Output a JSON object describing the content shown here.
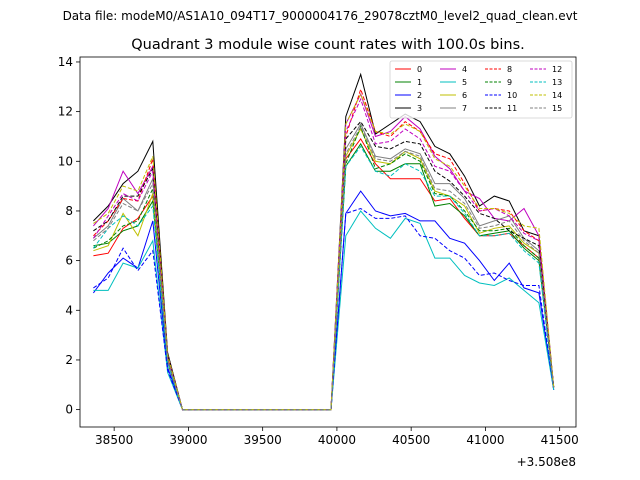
{
  "chart_data": {
    "type": "line",
    "suptitle": "Data file: modeM0/AS1A10_094T17_9000004176_29078cztM0_level2_quad_clean.evt",
    "title": "Quadrant 3 module wise count rates with 100.0s bins.",
    "xlabel": "",
    "ylabel": "",
    "x_offset_label": "+3.508e8",
    "xlim": [
      38270,
      41610
    ],
    "ylim": [
      -0.7,
      14.2
    ],
    "xticks": [
      38500,
      39000,
      39500,
      40000,
      40500,
      41000,
      41500
    ],
    "xtick_labels": [
      "38500",
      "39000",
      "39500",
      "40000",
      "40500",
      "41000",
      "41500"
    ],
    "yticks": [
      0,
      2,
      4,
      6,
      8,
      10,
      12,
      14
    ],
    "ytick_labels": [
      "0",
      "2",
      "4",
      "6",
      "8",
      "10",
      "12",
      "14"
    ],
    "grid": false,
    "legend_placement": "upper-right",
    "x": [
      38360,
      38460,
      38560,
      38660,
      38760,
      38860,
      38960,
      39060,
      39160,
      39260,
      39360,
      39460,
      39560,
      39660,
      39760,
      39860,
      39960,
      40060,
      40160,
      40260,
      40360,
      40460,
      40560,
      40660,
      40760,
      40860,
      40960,
      41060,
      41160,
      41260,
      41360,
      41460
    ],
    "series": [
      {
        "name": "0",
        "color": "#ff0000",
        "dash": "solid",
        "values": [
          6.2,
          6.3,
          7.3,
          7.7,
          8.6,
          2.1,
          0,
          0,
          0,
          0,
          0,
          0,
          0,
          0,
          0,
          0,
          0,
          10.1,
          10.9,
          9.9,
          9.3,
          9.3,
          9.3,
          8.4,
          8.5,
          7.7,
          7.0,
          7.0,
          7.1,
          6.6,
          6.1,
          0.9
        ]
      },
      {
        "name": "1",
        "color": "#008000",
        "dash": "solid",
        "values": [
          6.6,
          6.7,
          7.2,
          7.4,
          8.4,
          1.9,
          0,
          0,
          0,
          0,
          0,
          0,
          0,
          0,
          0,
          0,
          0,
          9.8,
          10.7,
          9.6,
          9.6,
          9.9,
          9.9,
          8.2,
          8.3,
          7.8,
          7.0,
          7.1,
          7.2,
          6.5,
          6.0,
          0.9
        ]
      },
      {
        "name": "2",
        "color": "#0000ff",
        "dash": "solid",
        "values": [
          4.7,
          5.5,
          6.1,
          5.7,
          7.6,
          1.7,
          0,
          0,
          0,
          0,
          0,
          0,
          0,
          0,
          0,
          0,
          0,
          7.9,
          8.8,
          8.0,
          7.8,
          7.9,
          7.6,
          7.6,
          6.9,
          6.7,
          6.0,
          5.2,
          5.9,
          4.9,
          4.7,
          0.8
        ]
      },
      {
        "name": "3",
        "color": "#000000",
        "dash": "solid",
        "values": [
          7.6,
          8.2,
          9.1,
          9.6,
          10.8,
          2.3,
          0,
          0,
          0,
          0,
          0,
          0,
          0,
          0,
          0,
          0,
          0,
          11.8,
          13.5,
          11.1,
          11.5,
          11.9,
          11.6,
          10.6,
          10.3,
          9.4,
          8.2,
          8.6,
          8.4,
          7.2,
          7.0,
          0.9
        ]
      },
      {
        "name": "4",
        "color": "#bf00bf",
        "dash": "solid",
        "values": [
          7.4,
          8.1,
          9.6,
          8.7,
          9.8,
          2.2,
          0,
          0,
          0,
          0,
          0,
          0,
          0,
          0,
          0,
          0,
          0,
          11.5,
          12.7,
          11.0,
          11.2,
          11.8,
          11.3,
          10.2,
          9.7,
          8.8,
          8.5,
          7.7,
          7.6,
          8.1,
          7.0,
          0.9
        ]
      },
      {
        "name": "5",
        "color": "#00bfbf",
        "dash": "solid",
        "values": [
          4.8,
          4.8,
          5.9,
          5.7,
          6.8,
          1.5,
          0,
          0,
          0,
          0,
          0,
          0,
          0,
          0,
          0,
          0,
          0,
          7.0,
          8.0,
          7.3,
          6.9,
          7.7,
          7.5,
          6.1,
          6.1,
          5.4,
          5.1,
          5.0,
          5.3,
          4.8,
          4.3,
          0.8
        ]
      },
      {
        "name": "6",
        "color": "#bfbf00",
        "dash": "solid",
        "values": [
          6.4,
          6.6,
          7.9,
          7.0,
          8.7,
          2.0,
          0,
          0,
          0,
          0,
          0,
          0,
          0,
          0,
          0,
          0,
          0,
          10.2,
          11.3,
          10.0,
          9.9,
          10.4,
          10.1,
          8.8,
          8.6,
          8.2,
          7.1,
          7.3,
          7.4,
          6.7,
          6.3,
          0.9
        ]
      },
      {
        "name": "7",
        "color": "#808080",
        "dash": "solid",
        "values": [
          6.9,
          7.4,
          8.5,
          8.0,
          9.3,
          2.1,
          0,
          0,
          0,
          0,
          0,
          0,
          0,
          0,
          0,
          0,
          0,
          10.5,
          11.5,
          10.2,
          10.1,
          10.5,
          10.3,
          9.1,
          9.1,
          8.5,
          7.4,
          7.6,
          7.8,
          6.9,
          6.4,
          0.9
        ]
      },
      {
        "name": "8",
        "color": "#ff0000",
        "dash": "dashed",
        "values": [
          7.0,
          7.6,
          8.5,
          8.4,
          10.1,
          2.2,
          0,
          0,
          0,
          0,
          0,
          0,
          0,
          0,
          0,
          0,
          0,
          11.0,
          12.9,
          11.2,
          11.0,
          11.6,
          11.2,
          10.3,
          10.1,
          9.1,
          8.0,
          8.1,
          8.0,
          7.2,
          6.8,
          0.9
        ]
      },
      {
        "name": "9",
        "color": "#008000",
        "dash": "dashed",
        "values": [
          6.5,
          6.8,
          7.4,
          7.6,
          8.9,
          2.0,
          0,
          0,
          0,
          0,
          0,
          0,
          0,
          0,
          0,
          0,
          0,
          9.9,
          11.4,
          9.7,
          9.9,
          10.3,
          10.0,
          8.7,
          8.6,
          8.0,
          7.2,
          7.2,
          7.3,
          6.6,
          6.1,
          0.9
        ]
      },
      {
        "name": "10",
        "color": "#0000ff",
        "dash": "dashed",
        "values": [
          4.9,
          5.3,
          6.5,
          5.6,
          6.4,
          1.6,
          0,
          0,
          0,
          0,
          0,
          0,
          0,
          0,
          0,
          0,
          0,
          7.9,
          8.1,
          7.7,
          7.7,
          7.8,
          7.0,
          6.9,
          6.4,
          6.1,
          5.4,
          5.5,
          5.2,
          5.0,
          5.0,
          0.8
        ]
      },
      {
        "name": "11",
        "color": "#000000",
        "dash": "dashed",
        "values": [
          7.2,
          7.6,
          8.6,
          8.6,
          9.7,
          2.2,
          0,
          0,
          0,
          0,
          0,
          0,
          0,
          0,
          0,
          0,
          0,
          10.9,
          11.6,
          10.6,
          10.5,
          10.8,
          10.7,
          9.6,
          9.2,
          8.6,
          7.9,
          7.7,
          7.2,
          6.9,
          6.6,
          0.9
        ]
      },
      {
        "name": "12",
        "color": "#bf00bf",
        "dash": "dashed",
        "values": [
          6.9,
          7.8,
          8.7,
          8.4,
          9.6,
          2.1,
          0,
          0,
          0,
          0,
          0,
          0,
          0,
          0,
          0,
          0,
          0,
          11.2,
          12.5,
          10.7,
          10.8,
          11.3,
          10.9,
          9.8,
          9.6,
          8.8,
          8.0,
          8.1,
          7.8,
          7.1,
          6.8,
          0.9
        ]
      },
      {
        "name": "13",
        "color": "#00bfbf",
        "dash": "dashed",
        "values": [
          6.5,
          7.3,
          7.8,
          7.4,
          8.2,
          1.9,
          0,
          0,
          0,
          0,
          0,
          0,
          0,
          0,
          0,
          0,
          0,
          9.8,
          10.6,
          9.6,
          9.4,
          9.9,
          9.6,
          8.6,
          8.6,
          7.9,
          7.0,
          7.0,
          7.1,
          6.4,
          5.9,
          0.8
        ]
      },
      {
        "name": "14",
        "color": "#bfbf00",
        "dash": "dashed",
        "values": [
          7.5,
          7.9,
          9.0,
          8.8,
          10.2,
          2.2,
          0,
          0,
          0,
          0,
          0,
          0,
          0,
          0,
          0,
          0,
          0,
          11.5,
          12.7,
          11.2,
          11.1,
          11.5,
          11.2,
          10.1,
          9.8,
          9.0,
          8.1,
          8.1,
          7.9,
          7.4,
          7.3,
          0.9
        ]
      },
      {
        "name": "15",
        "color": "#808080",
        "dash": "dashed",
        "values": [
          6.8,
          7.3,
          8.3,
          8.0,
          9.1,
          2.0,
          0,
          0,
          0,
          0,
          0,
          0,
          0,
          0,
          0,
          0,
          0,
          10.3,
          11.4,
          10.1,
          10.0,
          10.4,
          10.2,
          8.9,
          8.8,
          8.3,
          7.3,
          7.4,
          7.6,
          6.8,
          6.3,
          0.9
        ]
      }
    ]
  }
}
